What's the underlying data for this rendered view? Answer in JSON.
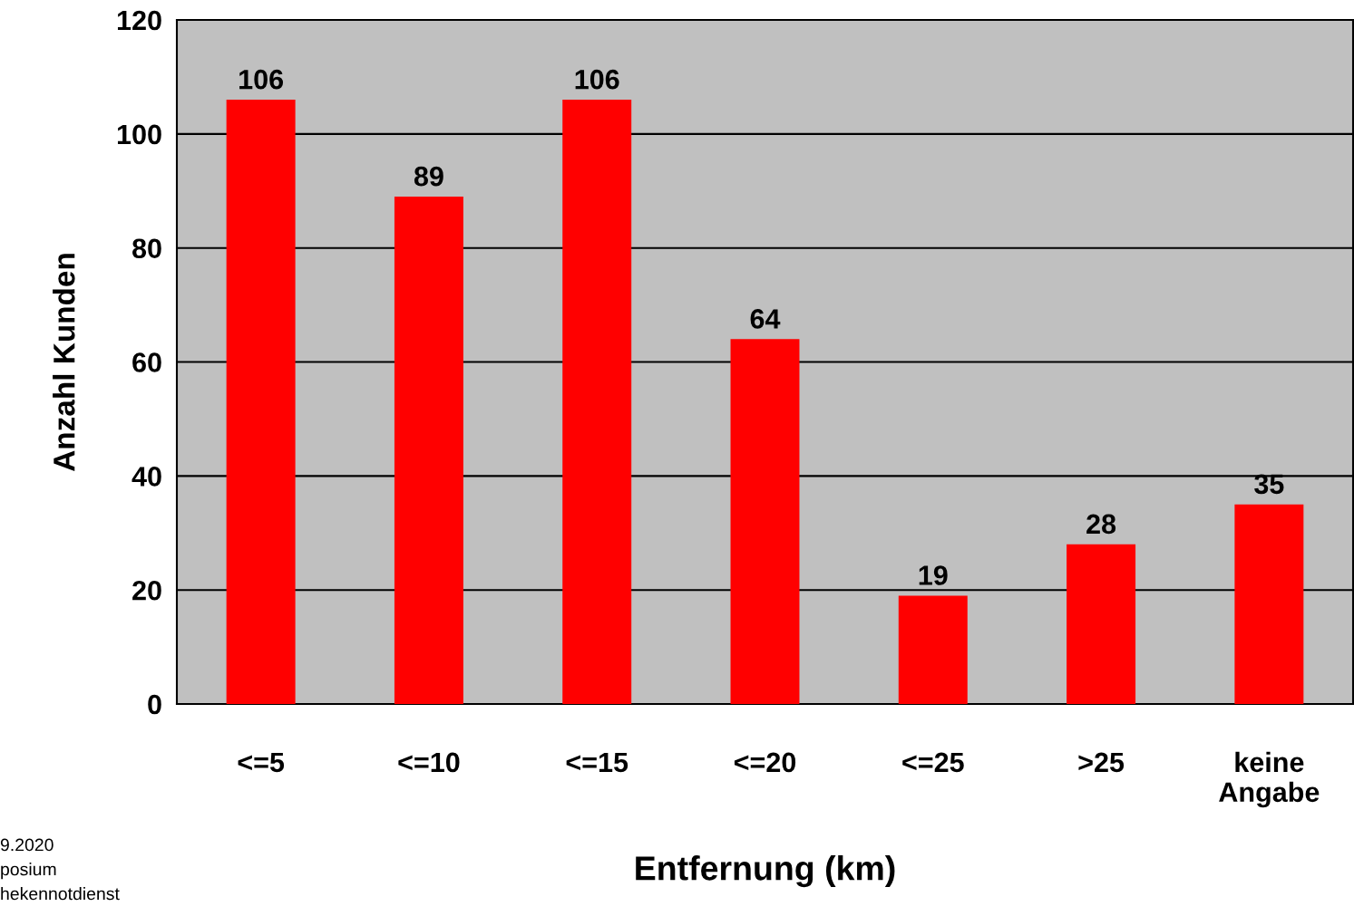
{
  "chart_data": {
    "type": "bar",
    "xlabel": "Entfernung (km)",
    "ylabel": "Anzahl Kunden",
    "categories": [
      "<=5",
      "<=10",
      "<=15",
      "<=20",
      "<=25",
      ">25",
      "keine\nAngabe"
    ],
    "values": [
      106,
      89,
      106,
      64,
      19,
      28,
      35
    ],
    "color": "#ff0000",
    "ylim": [
      0,
      120
    ],
    "yticks": [
      0,
      20,
      40,
      60,
      80,
      100,
      120
    ],
    "grid": "y",
    "data_labels": true,
    "annotations": [
      "9.2020",
      "posium",
      "hekennotdienst"
    ]
  }
}
